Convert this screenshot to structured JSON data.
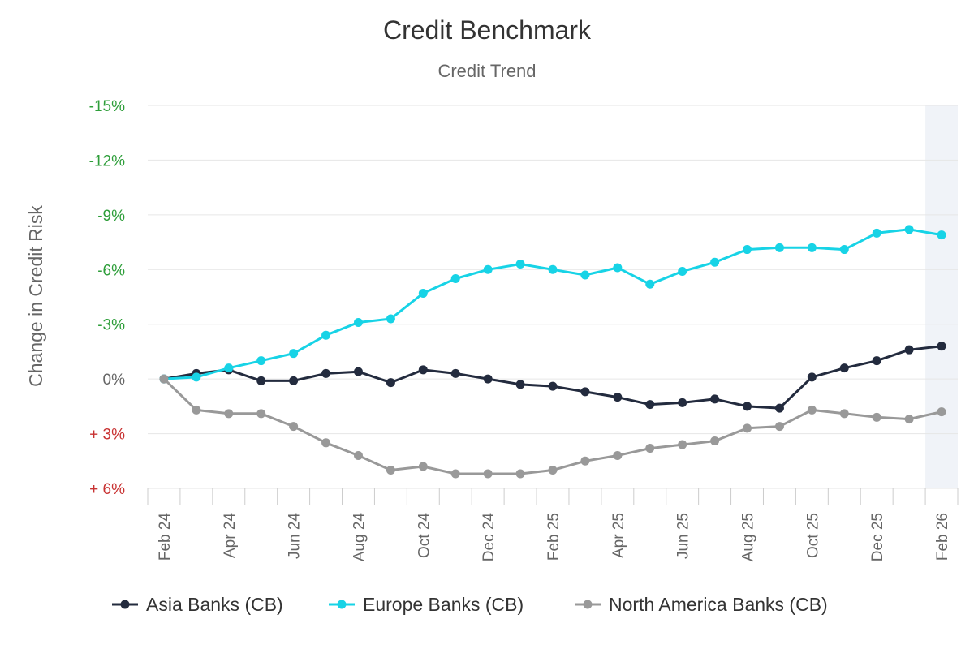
{
  "chart_data": {
    "type": "line",
    "title": "Credit Benchmark",
    "subtitle": "Credit Trend",
    "ylabel": "Change in Credit Risk",
    "xlabel": "",
    "ylim": [
      -15,
      6
    ],
    "y_ticks": [
      {
        "value": -15,
        "label": "-15%",
        "color": "#2e9e3a"
      },
      {
        "value": -12,
        "label": "-12%",
        "color": "#2e9e3a"
      },
      {
        "value": -9,
        "label": "-9%",
        "color": "#2e9e3a"
      },
      {
        "value": -6,
        "label": "-6%",
        "color": "#2e9e3a"
      },
      {
        "value": -3,
        "label": "-3%",
        "color": "#2e9e3a"
      },
      {
        "value": 0,
        "label": "0%",
        "color": "#666666"
      },
      {
        "value": 3,
        "label": "+ 3%",
        "color": "#c83232"
      },
      {
        "value": 6,
        "label": "+ 6%",
        "color": "#c83232"
      }
    ],
    "x": [
      "Feb 24",
      "Mar 24",
      "Apr 24",
      "May 24",
      "Jun 24",
      "Jul 24",
      "Aug 24",
      "Sep 24",
      "Oct 24",
      "Nov 24",
      "Dec 24",
      "Jan 25",
      "Feb 25",
      "Mar 25",
      "Apr 25",
      "May 25",
      "Jun 25",
      "Jul 25",
      "Aug 25",
      "Sep 25",
      "Oct 25",
      "Nov 25",
      "Dec 25",
      "Jan 26",
      "Feb 26"
    ],
    "x_tick_labels": [
      {
        "index": 0,
        "label": "Feb 24"
      },
      {
        "index": 2,
        "label": "Apr 24"
      },
      {
        "index": 4,
        "label": "Jun 24"
      },
      {
        "index": 6,
        "label": "Aug 24"
      },
      {
        "index": 8,
        "label": "Oct 24"
      },
      {
        "index": 10,
        "label": "Dec 24"
      },
      {
        "index": 12,
        "label": "Feb 25"
      },
      {
        "index": 14,
        "label": "Apr 25"
      },
      {
        "index": 16,
        "label": "Jun 25"
      },
      {
        "index": 18,
        "label": "Aug 25"
      },
      {
        "index": 20,
        "label": "Oct 25"
      },
      {
        "index": 22,
        "label": "Dec 25"
      },
      {
        "index": 24,
        "label": "Feb 26"
      }
    ],
    "highlight_last_period": true,
    "grid": true,
    "legend": "bottom",
    "series": [
      {
        "name": "Asia Banks (CB)",
        "color": "#232b3e",
        "values": [
          0,
          -0.3,
          -0.5,
          0.1,
          0.1,
          -0.3,
          -0.4,
          0.2,
          -0.5,
          -0.3,
          0,
          0.3,
          0.4,
          0.7,
          1.0,
          1.4,
          1.3,
          1.1,
          1.5,
          1.6,
          -0.1,
          -0.6,
          -1.0,
          -1.6,
          -1.8
        ]
      },
      {
        "name": "Europe Banks (CB)",
        "color": "#17d3e6",
        "values": [
          0,
          -0.1,
          -0.6,
          -1.0,
          -1.4,
          -2.4,
          -3.1,
          -3.3,
          -4.7,
          -5.5,
          -6.0,
          -6.3,
          -6.0,
          -5.7,
          -6.1,
          -5.2,
          -5.9,
          -6.4,
          -7.1,
          -7.2,
          -7.2,
          -7.1,
          -8.0,
          -8.2,
          -7.9
        ]
      },
      {
        "name": "North America Banks (CB)",
        "color": "#999999",
        "values": [
          0,
          1.7,
          1.9,
          1.9,
          2.6,
          3.5,
          4.2,
          5.0,
          4.8,
          5.2,
          5.2,
          5.2,
          5.0,
          4.5,
          4.2,
          3.8,
          3.6,
          3.4,
          2.7,
          2.6,
          1.7,
          1.9,
          2.1,
          2.2,
          1.8
        ]
      }
    ]
  }
}
